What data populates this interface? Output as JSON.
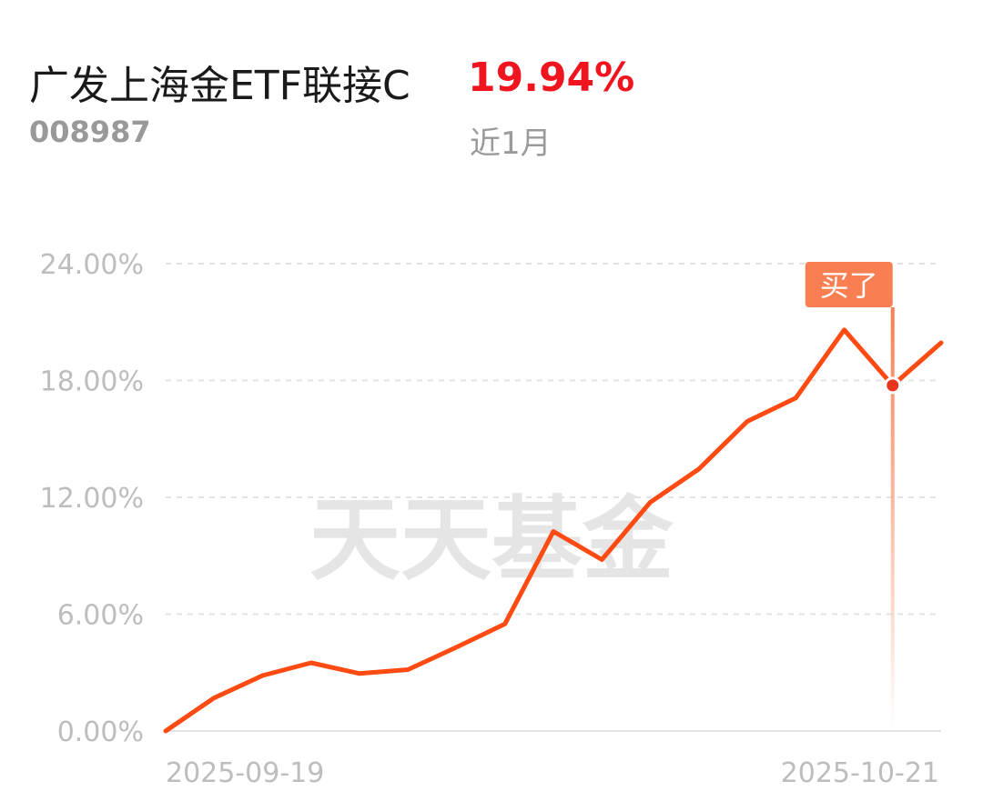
{
  "fund": {
    "name": "广发上海金ETF联接C",
    "code": "008987",
    "return": "19.94%",
    "period": "近1月"
  },
  "watermark": "天天基金",
  "marker": {
    "label": "买了",
    "index": 15
  },
  "colors": {
    "line": "#ff4a12",
    "marker": "#f97f52",
    "grid": "#e3e3e3",
    "axis": "#bdbdbd",
    "return": "#f0141e"
  },
  "chart_data": {
    "type": "line",
    "x": [
      "2025-09-19",
      "",
      "",
      "",
      "",
      "",
      "",
      "",
      "",
      "",
      "",
      "",
      "",
      "",
      "",
      "",
      "2025-10-21"
    ],
    "series": [
      {
        "values": [
          0.0,
          1.7,
          2.85,
          3.5,
          2.95,
          3.15,
          4.3,
          5.5,
          10.25,
          8.8,
          11.75,
          13.45,
          15.9,
          17.1,
          20.6,
          17.75,
          19.94
        ]
      }
    ],
    "y_ticks": [
      "0.00%",
      "6.00%",
      "12.00%",
      "18.00%",
      "24.00%"
    ],
    "x_tick_labels": [
      "2025-09-19",
      "2025-10-21"
    ],
    "ylim": [
      0,
      24
    ],
    "grid": true
  }
}
